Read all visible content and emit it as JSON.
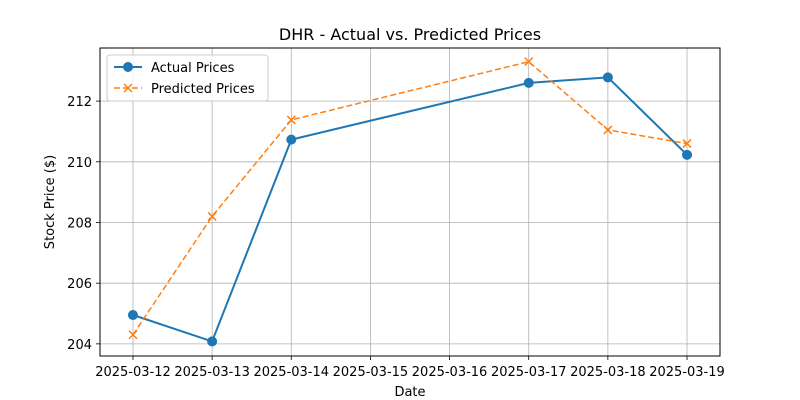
{
  "chart_data": {
    "type": "line",
    "title": "DHR - Actual vs. Predicted Prices",
    "xlabel": "Date",
    "ylabel": "Stock Price ($)",
    "x_ticks": [
      "2025-03-12",
      "2025-03-13",
      "2025-03-14",
      "2025-03-15",
      "2025-03-16",
      "2025-03-17",
      "2025-03-18",
      "2025-03-19"
    ],
    "y_ticks": [
      204,
      206,
      208,
      210,
      212
    ],
    "ylim": [
      203.6,
      213.75
    ],
    "xlim": [
      "2025-03-11 14:00",
      "2025-03-19 10:00"
    ],
    "grid": true,
    "legend_position": "upper-left",
    "series": [
      {
        "name": "Actual Prices",
        "color": "#1f77b4",
        "marker": "circle",
        "line_style": "solid",
        "x": [
          "2025-03-12",
          "2025-03-13",
          "2025-03-14",
          "2025-03-17",
          "2025-03-18",
          "2025-03-19"
        ],
        "values": [
          204.95,
          204.08,
          210.73,
          212.6,
          212.78,
          210.23
        ]
      },
      {
        "name": "Predicted Prices",
        "color": "#ff7f0e",
        "marker": "x",
        "line_style": "dashed",
        "x": [
          "2025-03-12",
          "2025-03-13",
          "2025-03-14",
          "2025-03-17",
          "2025-03-18",
          "2025-03-19"
        ],
        "values": [
          204.3,
          208.2,
          211.38,
          213.3,
          211.05,
          210.6
        ]
      }
    ]
  }
}
